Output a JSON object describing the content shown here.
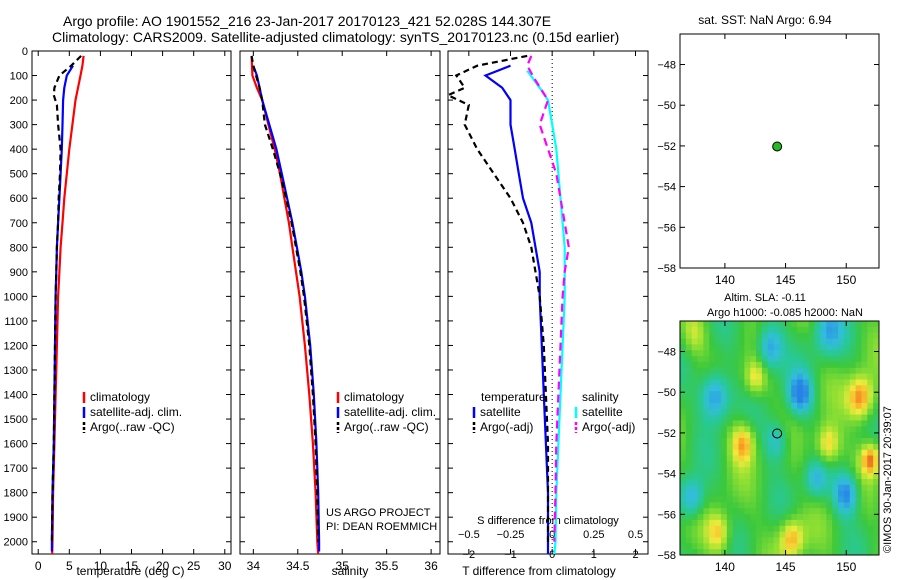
{
  "title_line1": "Argo profile: AO 1901552_216 23-Jan-2017 20170123_421 52.028S 144.307E",
  "title_line2": "Climatology: CARS2009. Satellite-adjusted climatology: synTS_20170123.nc (0.15d earlier)",
  "sst_title": "sat. SST: NaN Argo: 6.94",
  "sla_title1": "Altim. SLA: -0.11",
  "sla_title2": "Argo h1000: -0.085 h2000: NaN",
  "credit": "©IMOS 30-Jan-2017 20:39:07",
  "project_line1": "US ARGO PROJECT",
  "project_line2": "PI: DEAN ROEMMICH",
  "colors": {
    "climatology": "#ff0000",
    "satellite": "#0000ff",
    "argo": "#000000",
    "sal_satellite": "#00ffff",
    "sal_argo": "#ff00ff",
    "marker": "#22bb22"
  },
  "chart_data": [
    {
      "id": "temperature",
      "type": "line",
      "xlabel": "temperature (deg C)",
      "ylabel": "",
      "xlim": [
        -1,
        31
      ],
      "ylim": [
        2050,
        0
      ],
      "xticks": [
        0,
        5,
        10,
        15,
        20,
        25,
        30
      ],
      "yticks": [
        0,
        100,
        200,
        300,
        400,
        500,
        600,
        700,
        800,
        900,
        1000,
        1100,
        1200,
        1300,
        1400,
        1500,
        1600,
        1700,
        1800,
        1900,
        2000
      ],
      "legend": [
        "climatology",
        "satellite-adj. clim.",
        "Argo(..raw -QC)"
      ],
      "series": [
        {
          "name": "climatology",
          "color": "#ff0000",
          "dash": "",
          "points": [
            [
              7.3,
              20
            ],
            [
              7.1,
              60
            ],
            [
              6.8,
              100
            ],
            [
              6.4,
              150
            ],
            [
              6.0,
              200
            ],
            [
              5.5,
              300
            ],
            [
              5.0,
              400
            ],
            [
              4.6,
              500
            ],
            [
              4.2,
              600
            ],
            [
              3.9,
              700
            ],
            [
              3.6,
              800
            ],
            [
              3.4,
              900
            ],
            [
              3.2,
              1000
            ],
            [
              3.0,
              1200
            ],
            [
              2.8,
              1400
            ],
            [
              2.6,
              1600
            ],
            [
              2.4,
              1800
            ],
            [
              2.3,
              2000
            ],
            [
              2.25,
              2050
            ]
          ]
        },
        {
          "name": "satellite-adj. clim.",
          "color": "#0000ff",
          "dash": "",
          "points": [
            [
              5.6,
              60
            ],
            [
              4.6,
              100
            ],
            [
              4.2,
              150
            ],
            [
              4.0,
              200
            ],
            [
              3.9,
              300
            ],
            [
              3.8,
              400
            ],
            [
              3.6,
              500
            ],
            [
              3.4,
              600
            ],
            [
              3.2,
              700
            ],
            [
              3.0,
              800
            ],
            [
              2.9,
              900
            ],
            [
              2.8,
              1000
            ],
            [
              2.7,
              1200
            ],
            [
              2.6,
              1400
            ],
            [
              2.5,
              1600
            ],
            [
              2.3,
              1800
            ],
            [
              2.2,
              2000
            ],
            [
              2.2,
              2040
            ]
          ]
        },
        {
          "name": "Argo(..raw -QC)",
          "color": "#000000",
          "dash": "6,4",
          "points": [
            [
              6.9,
              20
            ],
            [
              5.3,
              60
            ],
            [
              3.4,
              100
            ],
            [
              2.6,
              150
            ],
            [
              2.5,
              180
            ],
            [
              3.0,
              220
            ],
            [
              3.2,
              300
            ],
            [
              3.6,
              400
            ],
            [
              3.5,
              500
            ],
            [
              3.3,
              600
            ],
            [
              3.2,
              700
            ],
            [
              3.0,
              800
            ],
            [
              2.9,
              900
            ],
            [
              2.8,
              1000
            ],
            [
              2.7,
              1200
            ],
            [
              2.6,
              1400
            ],
            [
              2.5,
              1600
            ],
            [
              2.3,
              1800
            ],
            [
              2.2,
              2000
            ]
          ]
        }
      ]
    },
    {
      "id": "salinity",
      "type": "line",
      "xlabel": "salinity",
      "ylabel": "",
      "xlim": [
        33.85,
        36.1
      ],
      "ylim": [
        2050,
        0
      ],
      "xticks": [
        34,
        34.5,
        35,
        35.5,
        36
      ],
      "xticklabels": [
        "34",
        "34.5",
        "35",
        "35.5",
        "36"
      ],
      "legend": [
        "climatology",
        "satellite-adj. clim.",
        "Argo(..raw -QC)"
      ],
      "series": [
        {
          "name": "climatology",
          "color": "#ff0000",
          "dash": "",
          "points": [
            [
              33.98,
              20
            ],
            [
              33.99,
              100
            ],
            [
              34.04,
              150
            ],
            [
              34.1,
              200
            ],
            [
              34.17,
              300
            ],
            [
              34.24,
              400
            ],
            [
              34.3,
              500
            ],
            [
              34.35,
              600
            ],
            [
              34.4,
              700
            ],
            [
              34.44,
              800
            ],
            [
              34.48,
              900
            ],
            [
              34.52,
              1000
            ],
            [
              34.58,
              1200
            ],
            [
              34.63,
              1400
            ],
            [
              34.67,
              1600
            ],
            [
              34.7,
              1800
            ],
            [
              34.72,
              2000
            ],
            [
              34.73,
              2050
            ]
          ]
        },
        {
          "name": "satellite-adj. clim.",
          "color": "#0000ff",
          "dash": "",
          "points": [
            [
              34.0,
              60
            ],
            [
              34.04,
              100
            ],
            [
              34.07,
              150
            ],
            [
              34.1,
              200
            ],
            [
              34.18,
              300
            ],
            [
              34.26,
              400
            ],
            [
              34.32,
              500
            ],
            [
              34.38,
              600
            ],
            [
              34.44,
              700
            ],
            [
              34.49,
              800
            ],
            [
              34.54,
              900
            ],
            [
              34.58,
              1000
            ],
            [
              34.64,
              1200
            ],
            [
              34.68,
              1400
            ],
            [
              34.71,
              1600
            ],
            [
              34.73,
              1800
            ],
            [
              34.74,
              2000
            ],
            [
              34.74,
              2040
            ]
          ]
        },
        {
          "name": "Argo(..raw -QC)",
          "color": "#000000",
          "dash": "6,4",
          "points": [
            [
              33.98,
              20
            ],
            [
              34.0,
              60
            ],
            [
              34.03,
              100
            ],
            [
              34.07,
              150
            ],
            [
              34.1,
              200
            ],
            [
              34.13,
              300
            ],
            [
              34.22,
              400
            ],
            [
              34.3,
              500
            ],
            [
              34.37,
              600
            ],
            [
              34.43,
              700
            ],
            [
              34.48,
              800
            ],
            [
              34.53,
              900
            ],
            [
              34.57,
              1000
            ],
            [
              34.63,
              1200
            ],
            [
              34.67,
              1400
            ],
            [
              34.7,
              1600
            ],
            [
              34.72,
              1800
            ],
            [
              34.73,
              2000
            ]
          ]
        }
      ]
    },
    {
      "id": "difference",
      "type": "line",
      "xlabel": "T difference from climatology",
      "top_xlabel": "S difference from climatology",
      "ylabel": "",
      "xlim": [
        -2.5,
        2.3
      ],
      "ylim": [
        2050,
        0
      ],
      "xticks": [
        -2,
        -1,
        0,
        1,
        2
      ],
      "top_ticks": [
        -2,
        -1,
        0,
        1,
        2
      ],
      "top_ticklabels": [
        "−0.5",
        "−0.25",
        "0",
        "0.25",
        "0.5"
      ],
      "legend_titles": [
        "temperature",
        "salinity"
      ],
      "legend": [
        "satellite",
        "Argo(-adj)",
        "satellite",
        "Argo(-adj)"
      ],
      "series": [
        {
          "name": "temperature satellite",
          "color": "#0000ff",
          "dash": "",
          "points": [
            [
              -1.0,
              60
            ],
            [
              -1.6,
              100
            ],
            [
              -1.2,
              150
            ],
            [
              -1.0,
              200
            ],
            [
              -1.0,
              300
            ],
            [
              -0.9,
              400
            ],
            [
              -0.8,
              500
            ],
            [
              -0.7,
              600
            ],
            [
              -0.5,
              700
            ],
            [
              -0.4,
              800
            ],
            [
              -0.3,
              900
            ],
            [
              -0.3,
              1000
            ],
            [
              -0.25,
              1200
            ],
            [
              -0.2,
              1400
            ],
            [
              -0.15,
              1600
            ],
            [
              -0.1,
              1800
            ],
            [
              -0.1,
              2000
            ],
            [
              -0.1,
              2050
            ]
          ]
        },
        {
          "name": "temperature Argo(-adj)",
          "color": "#000000",
          "dash": "6,4",
          "points": [
            [
              -0.6,
              20
            ],
            [
              -1.8,
              60
            ],
            [
              -2.3,
              100
            ],
            [
              -2.1,
              150
            ],
            [
              -2.5,
              180
            ],
            [
              -2.0,
              220
            ],
            [
              -2.1,
              300
            ],
            [
              -1.8,
              400
            ],
            [
              -1.4,
              500
            ],
            [
              -1.0,
              600
            ],
            [
              -0.7,
              700
            ],
            [
              -0.5,
              800
            ],
            [
              -0.4,
              900
            ],
            [
              -0.3,
              1000
            ],
            [
              -0.2,
              1200
            ],
            [
              -0.15,
              1400
            ],
            [
              -0.1,
              1600
            ],
            [
              -0.1,
              1800
            ],
            [
              -0.1,
              2000
            ]
          ]
        },
        {
          "name": "salinity satellite",
          "color": "#00ffff",
          "dash": "",
          "points": [
            [
              -0.6,
              80
            ],
            [
              -0.3,
              150
            ],
            [
              -0.1,
              200
            ],
            [
              0.0,
              300
            ],
            [
              0.1,
              400
            ],
            [
              0.15,
              500
            ],
            [
              0.2,
              600
            ],
            [
              0.25,
              700
            ],
            [
              0.3,
              800
            ],
            [
              0.3,
              900
            ],
            [
              0.3,
              1000
            ],
            [
              0.25,
              1200
            ],
            [
              0.2,
              1400
            ],
            [
              0.15,
              1600
            ],
            [
              0.1,
              1800
            ],
            [
              0.08,
              2000
            ],
            [
              0.05,
              2050
            ]
          ]
        },
        {
          "name": "salinity Argo(-adj)",
          "color": "#ff00ff",
          "dash": "8,5",
          "points": [
            [
              -0.5,
              20
            ],
            [
              -0.6,
              60
            ],
            [
              -0.4,
              120
            ],
            [
              -0.1,
              200
            ],
            [
              -0.3,
              300
            ],
            [
              -0.1,
              400
            ],
            [
              0.1,
              500
            ],
            [
              0.2,
              600
            ],
            [
              0.3,
              700
            ],
            [
              0.4,
              800
            ],
            [
              0.3,
              900
            ],
            [
              0.25,
              1000
            ],
            [
              0.2,
              1200
            ],
            [
              0.15,
              1400
            ],
            [
              0.1,
              1600
            ],
            [
              0.08,
              1800
            ],
            [
              0.05,
              2000
            ]
          ]
        }
      ]
    },
    {
      "id": "sst_map",
      "type": "scatter",
      "title": "sat. SST: NaN Argo: 6.94",
      "xlim": [
        136.3,
        152.7
      ],
      "ylim": [
        -58,
        -46.5
      ],
      "xticks": [
        140,
        145,
        150
      ],
      "yticks": [
        -48,
        -50,
        -52,
        -54,
        -56,
        -58
      ],
      "points": [
        [
          144.307,
          -52.028
        ]
      ]
    },
    {
      "id": "sla_map",
      "type": "heatmap",
      "title": "Altim. SLA: -0.11 / Argo h1000: -0.085 h2000: NaN",
      "xlim": [
        136.3,
        152.7
      ],
      "ylim": [
        -58,
        -46.5
      ],
      "xticks": [
        140,
        145,
        150
      ],
      "yticks": [
        -48,
        -50,
        -52,
        -54,
        -56,
        -58
      ],
      "points": [
        [
          144.307,
          -52.028
        ]
      ],
      "features": [
        {
          "lon": 139.2,
          "lat": -50.2,
          "v": -1.0,
          "r": 1.2
        },
        {
          "lon": 143.7,
          "lat": -47.8,
          "v": -0.9,
          "r": 1.1
        },
        {
          "lon": 146.2,
          "lat": -50.1,
          "v": -1.0,
          "r": 1.0
        },
        {
          "lon": 144.3,
          "lat": -52.4,
          "v": -0.6,
          "r": 1.0
        },
        {
          "lon": 148.5,
          "lat": -47.0,
          "v": -0.7,
          "r": 1.2
        },
        {
          "lon": 137.3,
          "lat": -55.2,
          "v": -0.8,
          "r": 1.0
        },
        {
          "lon": 150.0,
          "lat": -55.0,
          "v": -1.0,
          "r": 1.0
        },
        {
          "lon": 147.5,
          "lat": -54.3,
          "v": -0.6,
          "r": 0.9
        },
        {
          "lon": 141.5,
          "lat": -52.5,
          "v": 0.8,
          "r": 1.0
        },
        {
          "lon": 151.2,
          "lat": -50.3,
          "v": 1.0,
          "r": 1.1
        },
        {
          "lon": 148.5,
          "lat": -52.6,
          "v": 0.8,
          "r": 1.0
        },
        {
          "lon": 142.5,
          "lat": -49.3,
          "v": 0.6,
          "r": 0.9
        },
        {
          "lon": 145.5,
          "lat": -57.2,
          "v": 0.8,
          "r": 1.0
        },
        {
          "lon": 139.5,
          "lat": -56.9,
          "v": 0.7,
          "r": 1.0
        },
        {
          "lon": 152.0,
          "lat": -53.3,
          "v": 0.9,
          "r": 0.8
        },
        {
          "lon": 137.5,
          "lat": -47.2,
          "v": 0.4,
          "r": 1.0
        }
      ]
    }
  ]
}
